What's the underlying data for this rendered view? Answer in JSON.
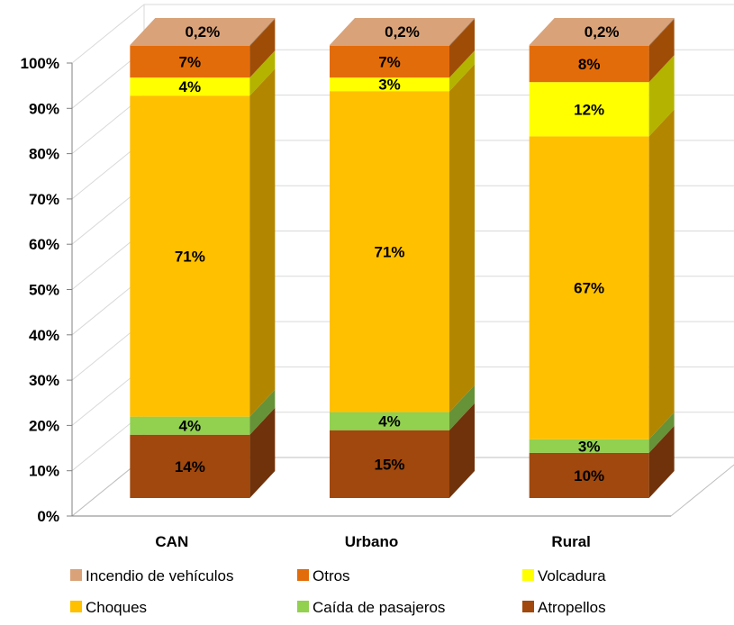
{
  "chart_data": {
    "type": "bar",
    "stacked": true,
    "percent_stacked": true,
    "three_d": true,
    "categories": [
      "CAN",
      "Urbano",
      "Rural"
    ],
    "series": [
      {
        "name": "Atropellos",
        "color": "#A0480E",
        "values": [
          14,
          15,
          10
        ],
        "labels": [
          "14%",
          "15%",
          "10%"
        ]
      },
      {
        "name": "Caída de pasajeros",
        "color": "#92D050",
        "values": [
          4,
          4,
          3
        ],
        "labels": [
          "4%",
          "4%",
          "3%"
        ]
      },
      {
        "name": "Choques",
        "color": "#FFC000",
        "values": [
          71,
          71,
          67
        ],
        "labels": [
          "71%",
          "71%",
          "67%"
        ]
      },
      {
        "name": "Volcadura",
        "color": "#FFFF00",
        "values": [
          4,
          3,
          12
        ],
        "labels": [
          "4%",
          "3%",
          "12%"
        ]
      },
      {
        "name": "Otros",
        "color": "#E36C0A",
        "values": [
          7,
          7,
          8
        ],
        "labels": [
          "7%",
          "7%",
          "8%"
        ]
      },
      {
        "name": "Incendio de vehículos",
        "color": "#D9A278",
        "values": [
          0.2,
          0.2,
          0.2
        ],
        "labels": [
          "0,2%",
          "0,2%",
          "0,2%"
        ]
      }
    ],
    "yticks": [
      "0%",
      "10%",
      "20%",
      "30%",
      "40%",
      "50%",
      "60%",
      "70%",
      "80%",
      "90%",
      "100%"
    ],
    "ylim": [
      0,
      100
    ],
    "grid": true,
    "legend_position": "bottom",
    "legend_order": [
      "Incendio de vehículos",
      "Otros",
      "Volcadura",
      "Choques",
      "Caída de pasajeros",
      "Atropellos"
    ]
  }
}
